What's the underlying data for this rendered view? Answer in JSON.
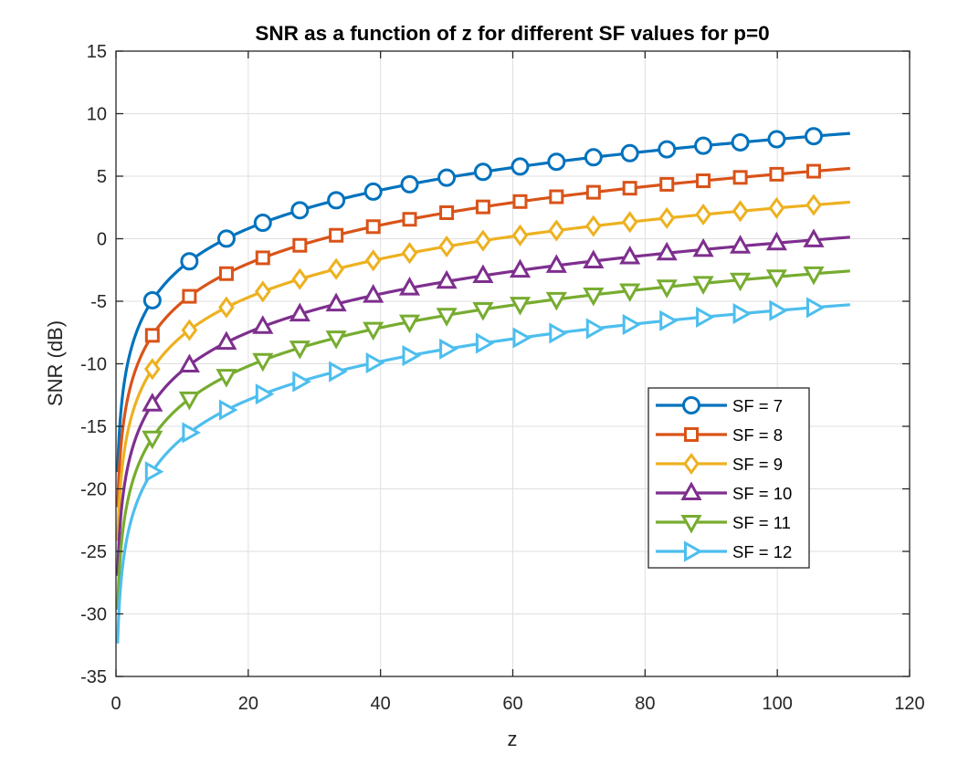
{
  "chart_data": {
    "type": "line",
    "title": "SNR as a function of z for different SF values for p=0",
    "xlabel": "z",
    "ylabel": "SNR (dB)",
    "xlim": [
      0,
      120
    ],
    "ylim": [
      -35,
      15
    ],
    "xticks": [
      0,
      20,
      40,
      60,
      80,
      100,
      120
    ],
    "yticks": [
      15,
      10,
      5,
      0,
      -5,
      -10,
      -15,
      -20,
      -25,
      -30,
      -35
    ],
    "grid": true,
    "legend_position": "lower-right",
    "x_end": 111,
    "marker_x": [
      5.5,
      11.1,
      16.7,
      22.2,
      27.8,
      33.3,
      38.9,
      44.4,
      50.0,
      55.5,
      61.1,
      66.6,
      72.2,
      77.7,
      83.3,
      88.8,
      94.4,
      99.9,
      105.5
    ],
    "series": [
      {
        "name": "SF = 7",
        "color": "#0072BD",
        "marker": "circle",
        "a": -12.5,
        "b": 10.23
      },
      {
        "name": "SF = 8",
        "color": "#D95319",
        "marker": "square",
        "a": -15.3,
        "b": 10.23
      },
      {
        "name": "SF = 9",
        "color": "#EDB120",
        "marker": "diamond",
        "a": -18.0,
        "b": 10.23
      },
      {
        "name": "SF = 10",
        "color": "#7E2F8E",
        "marker": "triangle-up",
        "a": -20.8,
        "b": 10.23
      },
      {
        "name": "SF = 11",
        "color": "#77AC30",
        "marker": "triangle-down",
        "a": -23.5,
        "b": 10.23
      },
      {
        "name": "SF = 12",
        "color": "#4DBEEE",
        "marker": "triangle-right",
        "a": -26.2,
        "b": 10.23
      }
    ]
  }
}
